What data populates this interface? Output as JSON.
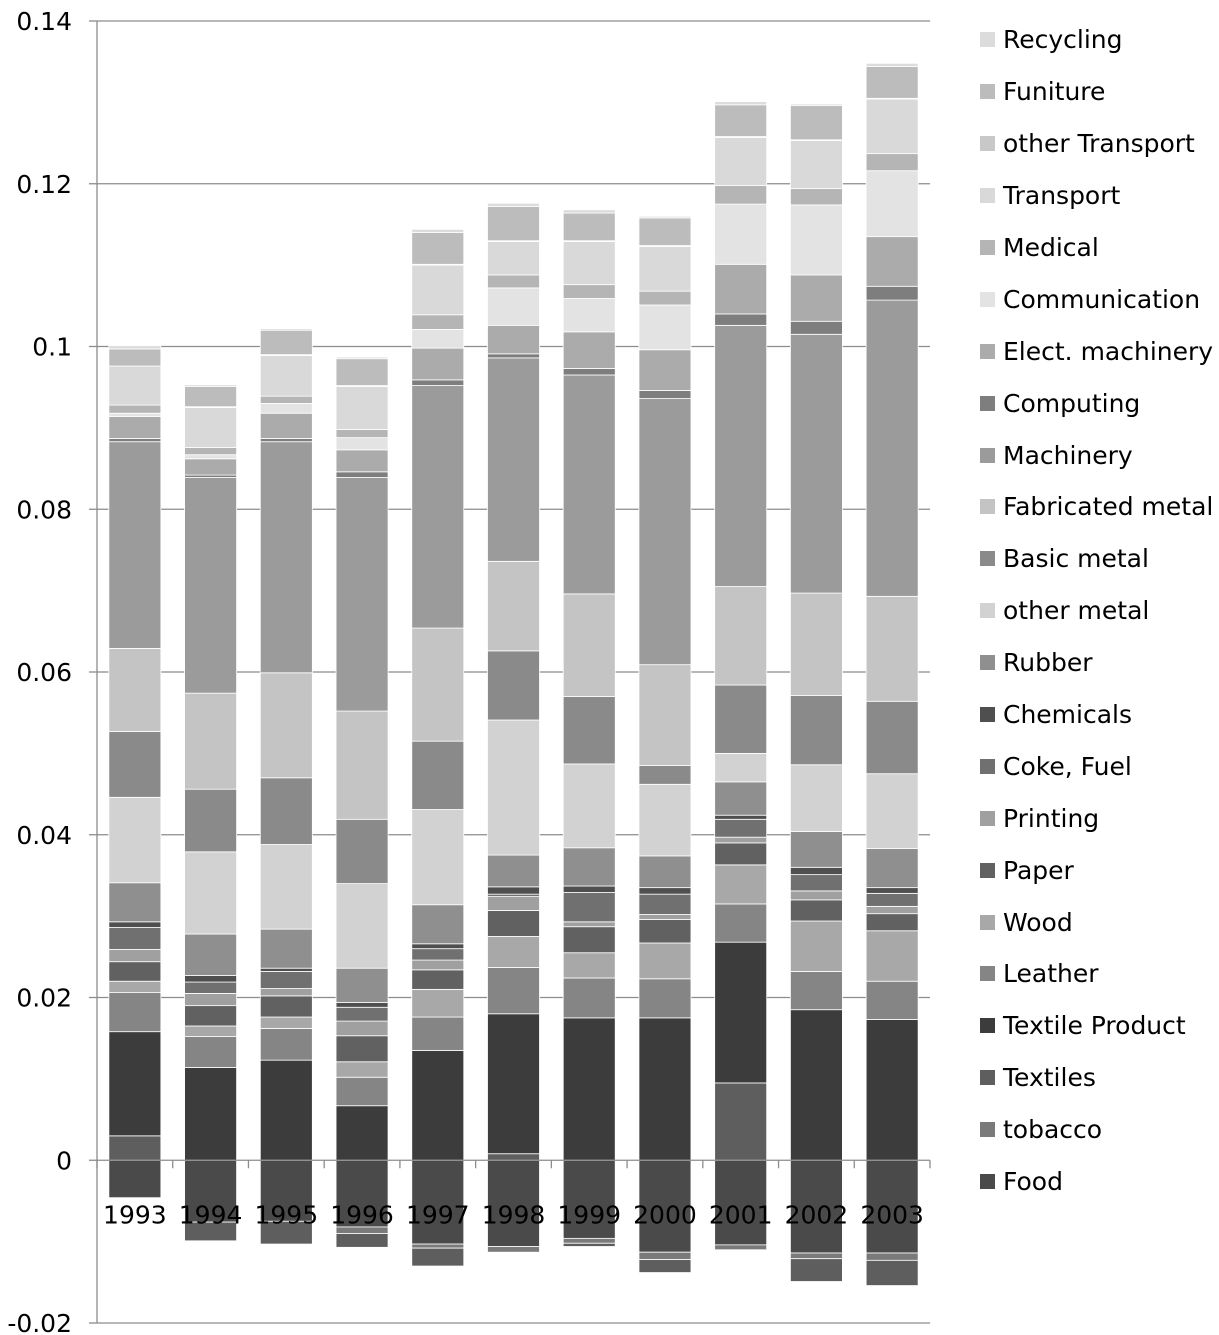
{
  "chart_data": {
    "type": "bar",
    "stacked": true,
    "title": "",
    "xlabel": "",
    "ylabel": "",
    "ylim": [
      -0.02,
      0.14
    ],
    "yticks": [
      -0.02,
      0,
      0.02,
      0.04,
      0.06,
      0.08,
      0.1,
      0.12,
      0.14
    ],
    "ytick_labels": [
      "-0.02",
      "0",
      "0.02",
      "0.04",
      "0.06",
      "0.08",
      "0.1",
      "0.12",
      "0.14"
    ],
    "grid": true,
    "legend_position": "right",
    "categories": [
      "1993",
      "1994",
      "1995",
      "1996",
      "1997",
      "1998",
      "1999",
      "2000",
      "2001",
      "2002",
      "2003"
    ],
    "series": [
      {
        "name": "Food",
        "color": "#4a4a4a",
        "values": [
          -0.0046,
          -0.0076,
          -0.0075,
          -0.0082,
          -0.0103,
          -0.0106,
          -0.0096,
          -0.0113,
          -0.0104,
          -0.0114,
          -0.0114
        ]
      },
      {
        "name": "tobacco",
        "color": "#7a7a7a",
        "values": [
          0,
          0,
          0,
          -0.0008,
          -0.0005,
          -0.0007,
          -0.0006,
          -0.0009,
          -0.0006,
          -0.0007,
          -0.0009
        ]
      },
      {
        "name": "Textiles",
        "color": "#5e5e5e",
        "values": [
          0.003,
          -0.0023,
          -0.0028,
          -0.0017,
          -0.0022,
          0.0008,
          -0.0004,
          -0.0016,
          0.0095,
          -0.0028,
          -0.0031
        ]
      },
      {
        "name": "Textile Product",
        "color": "#3c3c3c",
        "values": [
          0.0128,
          0.0114,
          0.0123,
          0.0067,
          0.0135,
          0.0172,
          0.0175,
          0.0175,
          0.0173,
          0.0185,
          0.0173
        ]
      },
      {
        "name": "Leather",
        "color": "#858585",
        "values": [
          0.0048,
          0.0038,
          0.0039,
          0.0035,
          0.0041,
          0.0057,
          0.0049,
          0.0048,
          0.0047,
          0.0047,
          0.0047
        ]
      },
      {
        "name": "Wood",
        "color": "#a8a8a8",
        "values": [
          0.0014,
          0.0013,
          0.0014,
          0.0019,
          0.0034,
          0.0038,
          0.0031,
          0.0044,
          0.0048,
          0.0062,
          0.0062
        ]
      },
      {
        "name": "Paper",
        "color": "#616161",
        "values": [
          0.0024,
          0.0025,
          0.0026,
          0.0032,
          0.0024,
          0.0032,
          0.0032,
          0.0029,
          0.0027,
          0.0026,
          0.0021
        ]
      },
      {
        "name": "Printing",
        "color": "#a0a0a0",
        "values": [
          0.0015,
          0.0015,
          0.0009,
          0.0018,
          0.0012,
          0.0017,
          0.0006,
          0.0006,
          0.0007,
          0.0011,
          0.0009
        ]
      },
      {
        "name": "Coke, Fuel",
        "color": "#707070",
        "values": [
          0.0027,
          0.0014,
          0.0021,
          0.0017,
          0.0014,
          0.0003,
          0.0036,
          0.0025,
          0.0022,
          0.002,
          0.0016
        ]
      },
      {
        "name": "Chemicals",
        "color": "#4f4f4f",
        "values": [
          0.0007,
          0.0008,
          0.0004,
          0.0006,
          0.0006,
          0.0009,
          0.0008,
          0.0008,
          0.0005,
          0.0009,
          0.0007
        ]
      },
      {
        "name": "Rubber",
        "color": "#8f8f8f",
        "values": [
          0.0048,
          0.0051,
          0.0048,
          0.0042,
          0.0048,
          0.0039,
          0.0047,
          0.0039,
          0.0041,
          0.0044,
          0.0048
        ]
      },
      {
        "name": "other metal",
        "color": "#d2d2d2",
        "values": [
          0.0105,
          0.0101,
          0.0104,
          0.0104,
          0.0117,
          0.0166,
          0.0103,
          0.0088,
          0.0035,
          0.0082,
          0.0092
        ]
      },
      {
        "name": "Basic metal",
        "color": "#8a8a8a",
        "values": [
          0.0081,
          0.0077,
          0.0082,
          0.0079,
          0.0084,
          0.0085,
          0.0083,
          0.0023,
          0.0084,
          0.0085,
          0.0089
        ]
      },
      {
        "name": "Fabricated metal",
        "color": "#c4c4c4",
        "values": [
          0.0102,
          0.0118,
          0.0129,
          0.0133,
          0.0139,
          0.011,
          0.0126,
          0.0124,
          0.0121,
          0.0126,
          0.0129
        ]
      },
      {
        "name": "Machinery",
        "color": "#9b9b9b",
        "values": [
          0.0254,
          0.0265,
          0.0284,
          0.0287,
          0.0298,
          0.025,
          0.0269,
          0.0327,
          0.0321,
          0.0318,
          0.0364
        ]
      },
      {
        "name": "Computing",
        "color": "#7e7e7e",
        "values": [
          0.0004,
          0.0003,
          0.0004,
          0.0007,
          0.0007,
          0.0005,
          0.0008,
          0.001,
          0.0014,
          0.0016,
          0.0017
        ]
      },
      {
        "name": "Elect. machinery",
        "color": "#ababab",
        "values": [
          0.0027,
          0.002,
          0.0031,
          0.0027,
          0.0039,
          0.0035,
          0.0045,
          0.005,
          0.0061,
          0.0057,
          0.0061
        ]
      },
      {
        "name": "Communication",
        "color": "#e3e3e3",
        "values": [
          0.0004,
          0.0005,
          0.0012,
          0.0015,
          0.0023,
          0.0046,
          0.0041,
          0.0055,
          0.0074,
          0.0086,
          0.0081
        ]
      },
      {
        "name": "Medical",
        "color": "#b5b5b5",
        "values": [
          0.001,
          0.0009,
          0.0009,
          0.001,
          0.0018,
          0.0016,
          0.0017,
          0.0017,
          0.0023,
          0.002,
          0.0021
        ]
      },
      {
        "name": "Transport",
        "color": "#d9d9d9",
        "values": [
          0.0048,
          0.0049,
          0.005,
          0.0053,
          0.0061,
          0.0041,
          0.0053,
          0.0055,
          0.0059,
          0.0059,
          0.0067
        ]
      },
      {
        "name": "other Transport",
        "color": "#c8c8c8",
        "values": [
          0,
          0.0001,
          0.0001,
          0.0001,
          0.0001,
          0.0001,
          0.0001,
          0.0001,
          0.0001,
          0.0001,
          0.0001
        ]
      },
      {
        "name": "Funiture",
        "color": "#bcbcbc",
        "values": [
          0.0021,
          0.0025,
          0.003,
          0.0033,
          0.0039,
          0.0042,
          0.0034,
          0.0034,
          0.0039,
          0.0042,
          0.0039
        ]
      },
      {
        "name": "Recycling",
        "color": "#dcdcdc",
        "values": [
          0.0004,
          0.0002,
          0.0002,
          0.0002,
          0.0004,
          0.0004,
          0.0004,
          0.0002,
          0.0004,
          0.0002,
          0.0004
        ]
      }
    ]
  }
}
